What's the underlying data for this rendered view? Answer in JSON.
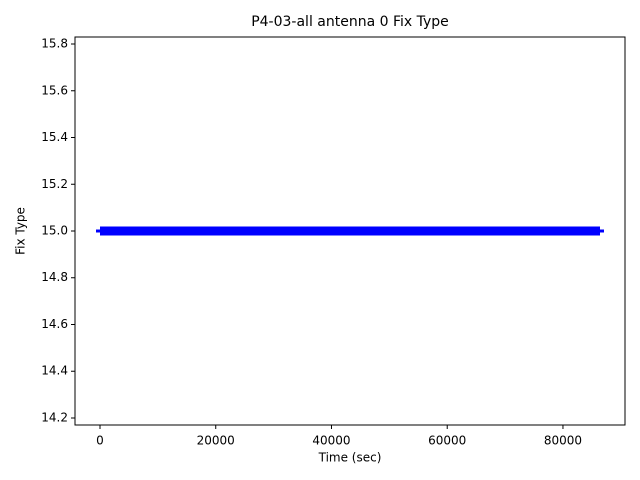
{
  "chart_data": {
    "type": "line",
    "title": "P4-03-all antenna 0 Fix Type",
    "x_label": "Time (sec)",
    "y_label": "Fix Type",
    "series": [
      {
        "color": "#0000ff",
        "x": [
          0,
          86400
        ],
        "values": [
          15,
          15
        ]
      }
    ],
    "xlim": [
      -4320,
      90720
    ],
    "xticks": [
      0,
      20000,
      40000,
      60000,
      80000
    ],
    "ylim": [
      14.17,
      15.83
    ],
    "yticks": [
      14.2,
      14.4,
      14.6,
      14.8,
      {
        "value": 15,
        "label": "15.0"
      },
      15.2,
      15.4,
      15.6,
      15.8
    ]
  }
}
